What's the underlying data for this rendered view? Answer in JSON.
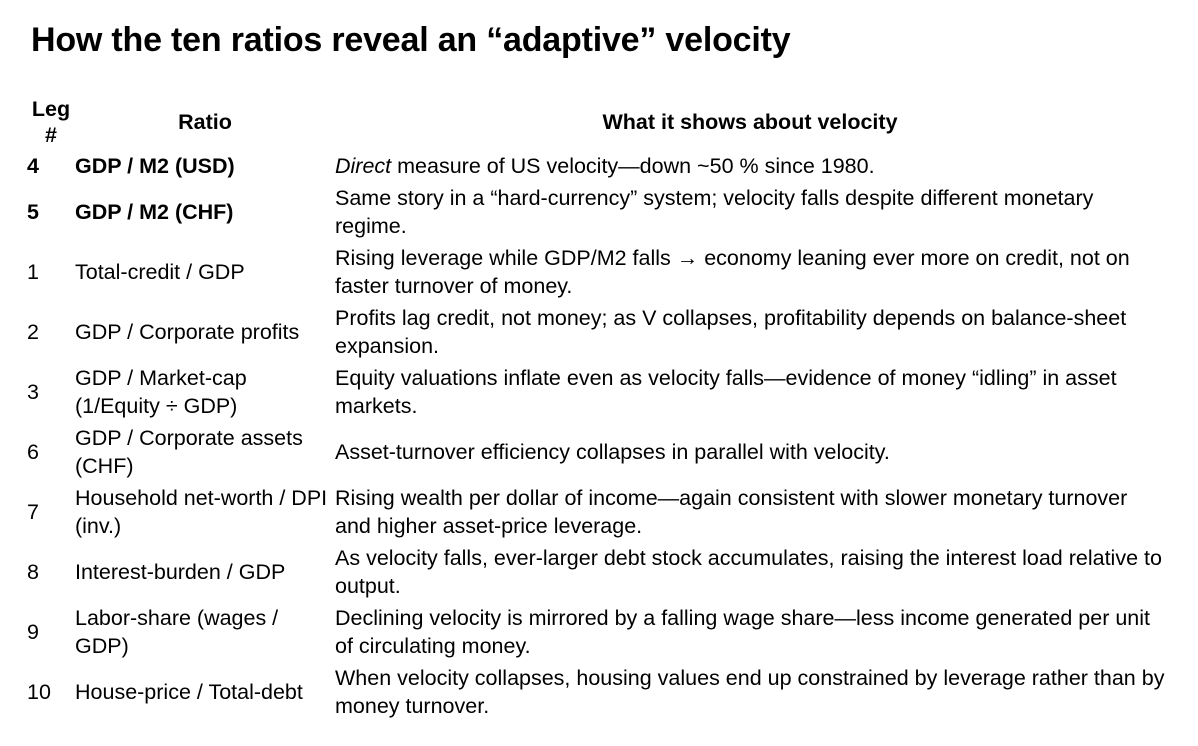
{
  "title": "How the ten ratios reveal an “adaptive” velocity",
  "table": {
    "headers": {
      "leg_line1": "Leg",
      "leg_line2": "#",
      "ratio": "Ratio",
      "what": "What it shows about velocity"
    },
    "rows": [
      {
        "leg": "4",
        "ratio": "GDP / M2 (USD)",
        "ratio_bold": true,
        "what_em": "Direct",
        "what": " measure of US velocity—down ~50 % since 1980."
      },
      {
        "leg": "5",
        "ratio": "GDP / M2 (CHF)",
        "ratio_bold": true,
        "what_em": "",
        "what": "Same story in a “hard-currency” system; velocity falls despite different monetary regime."
      },
      {
        "leg": "1",
        "ratio": "Total-credit / GDP",
        "ratio_bold": false,
        "what_em": "",
        "what": "Rising leverage while GDP/M2 falls → economy leaning ever more on credit, not on faster turnover of money."
      },
      {
        "leg": "2",
        "ratio": "GDP / Corporate profits",
        "ratio_bold": false,
        "what_em": "",
        "what": "Profits lag credit, not money; as V collapses, profitability depends on balance-sheet expansion."
      },
      {
        "leg": "3",
        "ratio": "GDP / Market-cap (1/Equity ÷ GDP)",
        "ratio_bold": false,
        "what_em": "",
        "what": "Equity valuations inflate even as velocity falls—evidence of money “idling” in asset markets."
      },
      {
        "leg": "6",
        "ratio": "GDP / Corporate assets (CHF)",
        "ratio_bold": false,
        "what_em": "",
        "what": "Asset-turnover efficiency collapses in parallel with velocity."
      },
      {
        "leg": "7",
        "ratio": "Household net-worth / DPI (inv.)",
        "ratio_bold": false,
        "what_em": "",
        "what": "Rising wealth per dollar of income—again consistent with slower monetary turnover and higher asset-price leverage."
      },
      {
        "leg": "8",
        "ratio": "Interest-burden / GDP",
        "ratio_bold": false,
        "what_em": "",
        "what": "As velocity falls, ever-larger debt stock accumulates, raising the interest load relative to output."
      },
      {
        "leg": "9",
        "ratio": "Labor-share (wages / GDP)",
        "ratio_bold": false,
        "what_em": "",
        "what": "Declining velocity is mirrored by a falling wage share—less income generated per unit of circulating money."
      },
      {
        "leg": "10",
        "ratio": "House-price / Total-debt",
        "ratio_bold": false,
        "what_em": "",
        "what": "When velocity collapses, housing values end up constrained by leverage rather than by money turnover."
      }
    ]
  }
}
